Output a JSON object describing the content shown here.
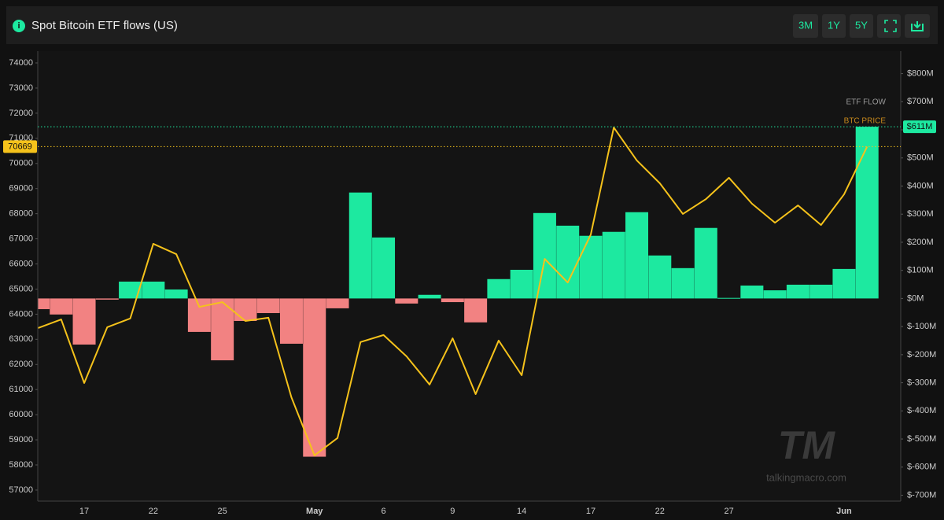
{
  "header": {
    "title": "Spot Bitcoin ETF flows (US)",
    "buttons": [
      "3M",
      "1Y",
      "5Y"
    ]
  },
  "chart_data": {
    "type": "bar",
    "categories": [
      null,
      null,
      "17",
      null,
      null,
      "22",
      null,
      null,
      "25",
      null,
      null,
      null,
      "May",
      null,
      null,
      "6",
      null,
      null,
      "9",
      null,
      null,
      "14",
      null,
      null,
      "17",
      null,
      null,
      "22",
      null,
      null,
      "27",
      null,
      null,
      null,
      null,
      "Jun",
      null
    ],
    "series": [
      {
        "name": "ETF FLOW",
        "type": "bar",
        "axis": "y2",
        "color": "#1de9a0",
        "negative_color": "#f28282",
        "legend_color": "#9a9a9a",
        "values": [
          -38,
          -57,
          -164,
          -4,
          60,
          60,
          32,
          -119,
          -220,
          -80,
          -52,
          -161,
          -563,
          -35,
          377,
          217,
          -18,
          13,
          -13,
          -85,
          69,
          102,
          304,
          259,
          223,
          237,
          307,
          153,
          108,
          251,
          2,
          46,
          29,
          49,
          49,
          105,
          611
        ],
        "value_labels": [
          null,
          null,
          null,
          null,
          null,
          null,
          null,
          null,
          null,
          null,
          null,
          null,
          null,
          null,
          null,
          null,
          null,
          null,
          null,
          null,
          null,
          null,
          null,
          null,
          null,
          null,
          null,
          null,
          null,
          null,
          null,
          null,
          null,
          null,
          null,
          null,
          "$611M"
        ]
      },
      {
        "name": "BTC PRICE",
        "type": "line",
        "color": "#f5c21b",
        "legend_color": "#c98a1c",
        "values": [
          63450,
          63790,
          61260,
          63480,
          63830,
          66800,
          66390,
          64290,
          64480,
          63730,
          63860,
          60690,
          58380,
          59070,
          62890,
          63170,
          62320,
          61200,
          63040,
          60820,
          62950,
          61570,
          66200,
          65260,
          67170,
          71430,
          70120,
          69210,
          67990,
          68580,
          69430,
          68400,
          67640,
          68330,
          67550,
          68770,
          70669
        ]
      }
    ],
    "ylim": [
      56560,
      74470
    ],
    "yticks": [
      57000,
      58000,
      59000,
      60000,
      61000,
      62000,
      63000,
      64000,
      65000,
      66000,
      67000,
      68000,
      69000,
      70000,
      71000,
      72000,
      73000,
      74000
    ],
    "y2lim": [
      -721,
      880
    ],
    "y2ticks": [
      {
        "value": -700,
        "label": "$-700M"
      },
      {
        "value": -600,
        "label": "$-600M"
      },
      {
        "value": -500,
        "label": "$-500M"
      },
      {
        "value": -400,
        "label": "$-400M"
      },
      {
        "value": -300,
        "label": "$-300M"
      },
      {
        "value": -200,
        "label": "$-200M"
      },
      {
        "value": -100,
        "label": "$-100M"
      },
      {
        "value": 0,
        "label": "$0M"
      },
      {
        "value": 100,
        "label": "$100M"
      },
      {
        "value": 200,
        "label": "$200M"
      },
      {
        "value": 300,
        "label": "$300M"
      },
      {
        "value": 400,
        "label": "$400M"
      },
      {
        "value": 500,
        "label": "$500M"
      },
      {
        "value": 600,
        "label": "$600M"
      },
      {
        "value": 700,
        "label": "$700M"
      },
      {
        "value": 800,
        "label": "$800M"
      }
    ],
    "grid": false
  },
  "watermark": {
    "logo": "TM",
    "site": "talkingmacro.com"
  }
}
